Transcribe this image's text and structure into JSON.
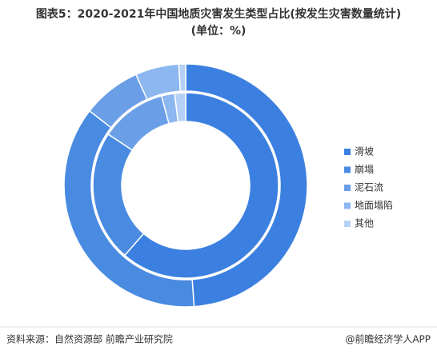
{
  "chart_data": {
    "type": "donut",
    "title": "图表5：2020-2021年中国地质灾害发生类型占比(按发生灾害数量统计)",
    "subtitle": "(单位：%)",
    "categories": [
      "滑坡",
      "崩塌",
      "泥石流",
      "地面塌陷",
      "其他"
    ],
    "colors": [
      "#3b80e0",
      "#4a8be2",
      "#6a9fe8",
      "#8cb7ef",
      "#b5d1f5"
    ],
    "series": [
      {
        "values": [
          48.9,
          36.6,
          7.8,
          5.8,
          0.9
        ]
      },
      {
        "values": [
          61.4,
          22.9,
          11.5,
          2.3,
          1.9
        ]
      }
    ],
    "source": "资料来源：自然资源部 前瞻产业研究院",
    "brand": "@前瞻经济学人APP"
  }
}
